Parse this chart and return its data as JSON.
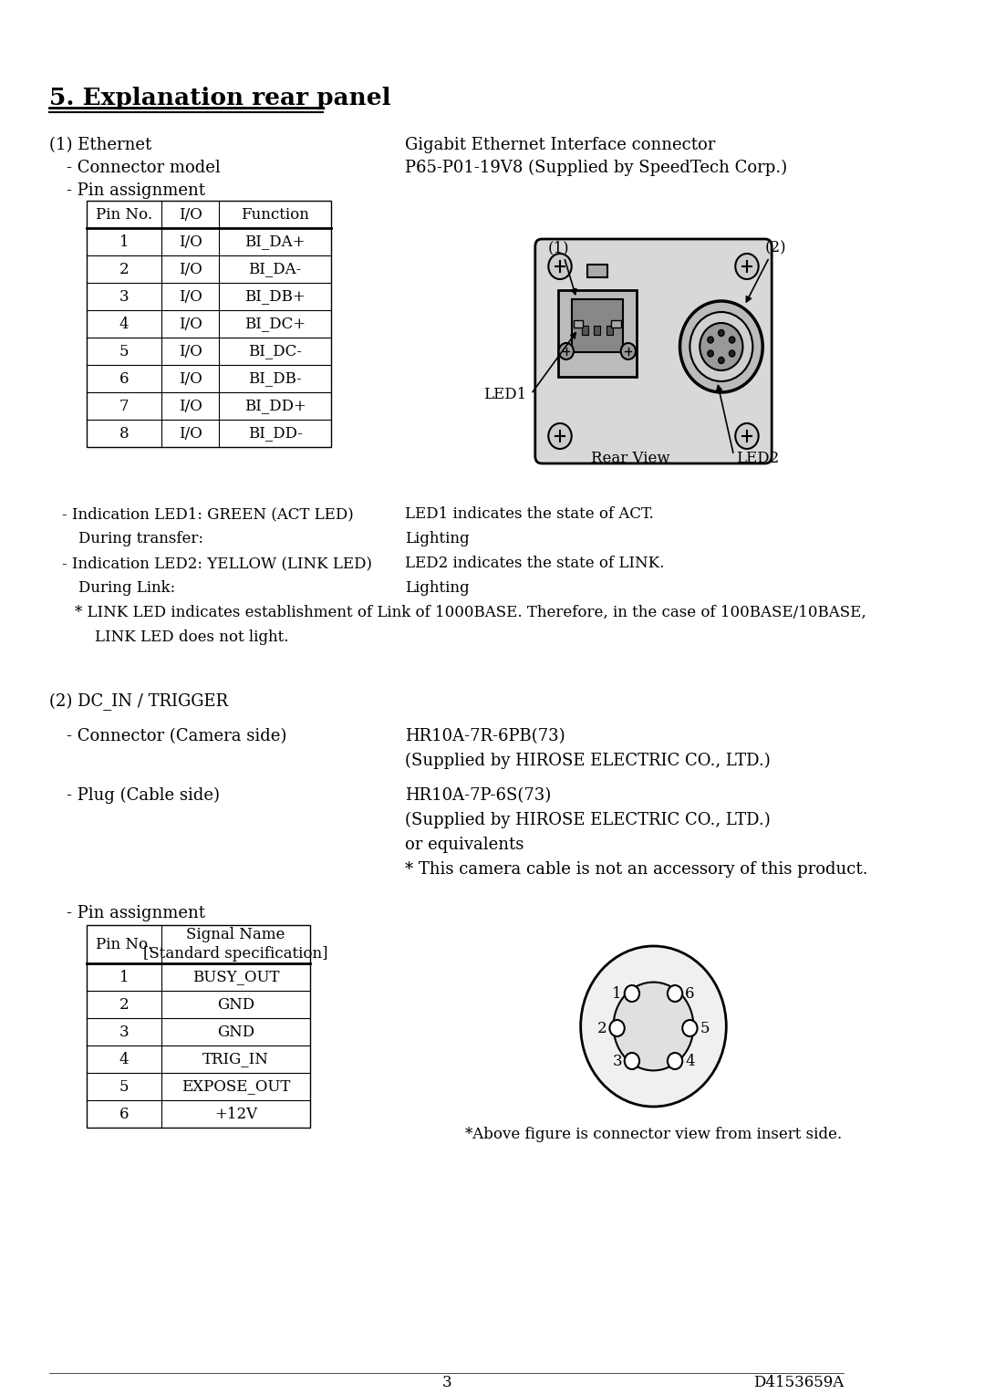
{
  "title": "5. Explanation rear panel",
  "bg_color": "#ffffff",
  "text_color": "#000000",
  "page_number": "3",
  "doc_number": "D4153659A",
  "section1_header": "(1) Ethernet",
  "section1_right1": "Gigabit Ethernet Interface connector",
  "section1_connector_label": "- Connector model",
  "section1_connector_value": "P65-P01-19V8 (Supplied by SpeedTech Corp.)",
  "section1_pin_label": "- Pin assignment",
  "table1_headers": [
    "Pin No.",
    "I/O",
    "Function"
  ],
  "table1_rows": [
    [
      "1",
      "I/O",
      "BI_DA+"
    ],
    [
      "2",
      "I/O",
      "BI_DA-"
    ],
    [
      "3",
      "I/O",
      "BI_DB+"
    ],
    [
      "4",
      "I/O",
      "BI_DC+"
    ],
    [
      "5",
      "I/O",
      "BI_DC-"
    ],
    [
      "6",
      "I/O",
      "BI_DB-"
    ],
    [
      "7",
      "I/O",
      "BI_DD+"
    ],
    [
      "8",
      "I/O",
      "BI_DD-"
    ]
  ],
  "led_lines": [
    [
      "- Indication LED1: GREEN (ACT LED)",
      "LED1 indicates the state of ACT."
    ],
    [
      "  During transfer:",
      "Lighting"
    ],
    [
      "- Indication LED2: YELLOW (LINK LED)",
      "LED2 indicates the state of LINK."
    ],
    [
      "  During Link:",
      "Lighting"
    ],
    [
      "  * LINK LED indicates establishment of Link of 1000BASE. Therefore, in the case of 100BASE/10BASE,",
      ""
    ],
    [
      "    LINK LED does not light.",
      ""
    ]
  ],
  "section2_header": "(2) DC_IN / TRIGGER",
  "section2_connector_label": "- Connector (Camera side)",
  "section2_connector_value1": "HR10A-7R-6PB(73)",
  "section2_connector_value2": "(Supplied by HIROSE ELECTRIC CO., LTD.)",
  "section2_plug_label": "- Plug (Cable side)",
  "section2_plug_value1": "HR10A-7P-6S(73)",
  "section2_plug_value2": "(Supplied by HIROSE ELECTRIC CO., LTD.)",
  "section2_plug_value3": "or equivalents",
  "section2_note": "* This camera cable is not an accessory of this product.",
  "section2_pin_label": "- Pin assignment",
  "table2_headers": [
    "Pin No.",
    "Signal Name\n[Standard specification]"
  ],
  "table2_rows": [
    [
      "1",
      "BUSY_OUT"
    ],
    [
      "2",
      "GND"
    ],
    [
      "3",
      "GND"
    ],
    [
      "4",
      "TRIG_IN"
    ],
    [
      "5",
      "EXPOSE_OUT"
    ],
    [
      "6",
      "+12V"
    ]
  ],
  "connector_note": "*Above figure is connector view from insert side.",
  "rear_view_label": "Rear View",
  "led2_label": "LED2",
  "led1_label": "LED1"
}
